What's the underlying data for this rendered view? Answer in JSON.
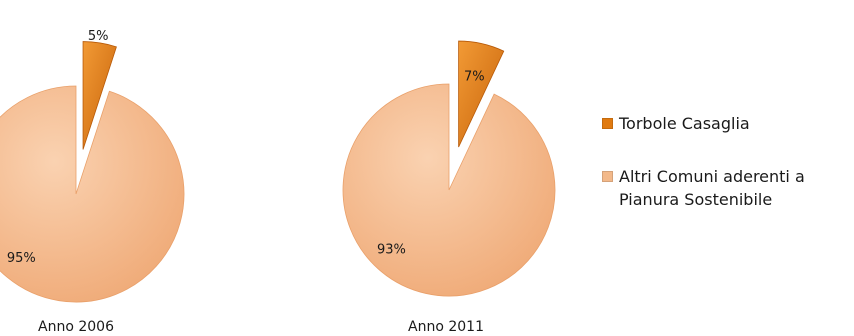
{
  "chart_data": {
    "type": "pie",
    "legend_position": "right",
    "series_names": [
      "Torbole Casaglia",
      "Altri Comuni aderenti a Pianura Sostenibile"
    ],
    "colors": {
      "highlight": "#E07A10",
      "other": "#F3B98A"
    },
    "charts": [
      {
        "title": "Anno 2006",
        "slices": [
          {
            "label": "Torbole Casaglia",
            "value": 5,
            "display": "5%",
            "exploded": true
          },
          {
            "label": "Altri Comuni aderenti a Pianura Sostenibile",
            "value": 95,
            "display": "95%",
            "exploded": false
          }
        ]
      },
      {
        "title": "Anno 2011",
        "slices": [
          {
            "label": "Torbole Casaglia",
            "value": 7,
            "display": "7%",
            "exploded": true
          },
          {
            "label": "Altri Comuni aderenti a Pianura Sostenibile",
            "value": 93,
            "display": "93%",
            "exploded": false
          }
        ]
      }
    ]
  },
  "legend": {
    "items": [
      {
        "label": "Torbole Casaglia"
      },
      {
        "label": "Altri Comuni aderenti a Pianura Sostenibile"
      }
    ]
  }
}
